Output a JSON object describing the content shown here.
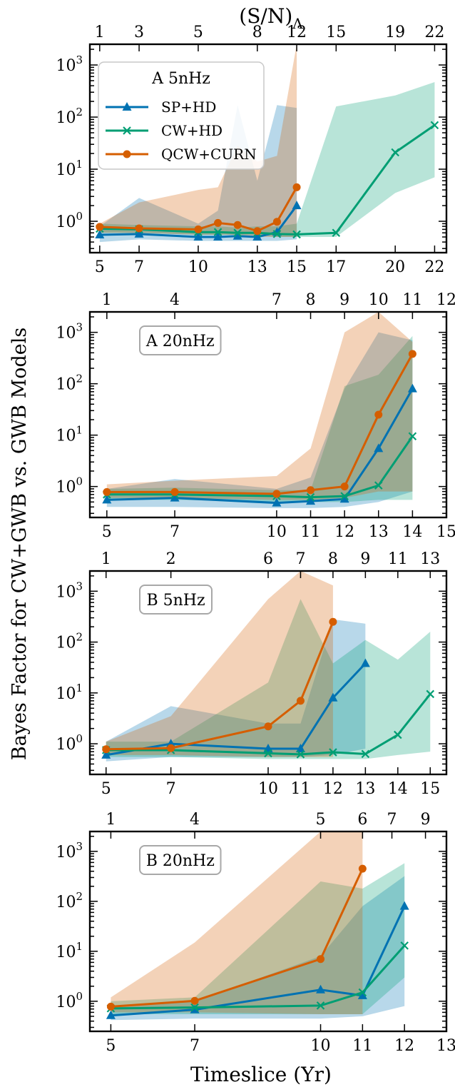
{
  "figure": {
    "ylabel": "Bayes Factor for CW+GWB vs. GWB Models",
    "xlabel": "Timeslice (Yr)",
    "top_axis_label": "(S/N)",
    "top_axis_label_sub": "Λ"
  },
  "colors": {
    "SP+HD": "#0072b2",
    "CW+HD": "#009e73",
    "QCW+CURN": "#d55e00"
  },
  "legend": {
    "title": "A 5nHz",
    "entries": [
      "SP+HD",
      "CW+HD",
      "QCW+CURN"
    ]
  },
  "chart_data": [
    {
      "type": "line",
      "title": "A 5nHz",
      "yscale": "log",
      "xlim": [
        4.5,
        22.6
      ],
      "ylim": [
        0.25,
        2500
      ],
      "yticks": [
        1,
        10,
        100,
        1000
      ],
      "xticks": [
        5,
        7,
        10,
        13,
        15,
        17,
        20,
        22
      ],
      "top_ticks": [
        {
          "x": 5,
          "label": "1"
        },
        {
          "x": 7,
          "label": "3"
        },
        {
          "x": 10,
          "label": "5"
        },
        {
          "x": 13,
          "label": "8"
        },
        {
          "x": 15,
          "label": "12"
        },
        {
          "x": 17,
          "label": "15"
        },
        {
          "x": 20,
          "label": "19"
        },
        {
          "x": 22,
          "label": "22"
        }
      ],
      "series": [
        {
          "name": "SP+HD",
          "marker": "triangle",
          "x": [
            5,
            7,
            10,
            11,
            12,
            13,
            14,
            15
          ],
          "y": [
            0.55,
            0.57,
            0.5,
            0.5,
            0.52,
            0.5,
            0.62,
            2.0
          ],
          "band_x": [
            5,
            7,
            10,
            11,
            12,
            13,
            14,
            15
          ],
          "band_lo": [
            0.4,
            0.45,
            0.42,
            0.42,
            0.42,
            0.42,
            0.42,
            0.45
          ],
          "band_hi": [
            0.8,
            2.8,
            0.9,
            1.6,
            170,
            6,
            170,
            150
          ]
        },
        {
          "name": "CW+HD",
          "marker": "x",
          "x": [
            5,
            7,
            10,
            11,
            12,
            13,
            14,
            15,
            17,
            20,
            22
          ],
          "y": [
            0.72,
            0.7,
            0.62,
            0.62,
            0.6,
            0.6,
            0.57,
            0.56,
            0.6,
            21,
            70
          ],
          "band_x": [
            5,
            7,
            10,
            11,
            12,
            13,
            14,
            15,
            17,
            20,
            22
          ],
          "band_lo": [
            0.6,
            0.6,
            0.55,
            0.55,
            0.55,
            0.55,
            0.5,
            0.5,
            0.5,
            3.5,
            7
          ],
          "band_hi": [
            0.9,
            0.85,
            0.8,
            0.8,
            0.75,
            0.8,
            0.8,
            0.9,
            160,
            260,
            470
          ]
        },
        {
          "name": "QCW+CURN",
          "marker": "circle",
          "x": [
            5,
            7,
            10,
            11,
            12,
            13,
            14,
            15
          ],
          "y": [
            0.78,
            0.73,
            0.7,
            0.93,
            0.85,
            0.65,
            0.98,
            4.5
          ],
          "band_x": [
            5,
            7,
            10,
            11,
            12,
            13,
            14,
            15
          ],
          "band_lo": [
            0.6,
            0.6,
            0.55,
            0.55,
            0.55,
            0.5,
            0.5,
            0.5
          ],
          "band_hi": [
            0.9,
            2.3,
            4,
            4.5,
            28,
            14,
            18,
            2500
          ]
        }
      ]
    },
    {
      "type": "line",
      "title": "A 20nHz",
      "yscale": "log",
      "xlim": [
        4.5,
        15
      ],
      "ylim": [
        0.25,
        2500
      ],
      "yticks": [
        1,
        10,
        100,
        1000
      ],
      "xticks": [
        5,
        7,
        10,
        11,
        12,
        13,
        14,
        15
      ],
      "top_ticks": [
        {
          "x": 5,
          "label": "1"
        },
        {
          "x": 7,
          "label": "4"
        },
        {
          "x": 10,
          "label": "7"
        },
        {
          "x": 11,
          "label": "8"
        },
        {
          "x": 12,
          "label": "9"
        },
        {
          "x": 13,
          "label": "10"
        },
        {
          "x": 14,
          "label": "11"
        },
        {
          "x": 15,
          "label": "12"
        }
      ],
      "series": [
        {
          "name": "SP+HD",
          "marker": "triangle",
          "x": [
            5,
            7,
            10,
            11,
            12,
            13,
            14
          ],
          "y": [
            0.55,
            0.6,
            0.48,
            0.52,
            0.57,
            5.5,
            80
          ],
          "band_x": [
            5,
            7,
            10,
            11,
            12,
            13,
            14
          ],
          "band_lo": [
            0.4,
            0.4,
            0.38,
            0.38,
            0.4,
            0.5,
            0.8
          ],
          "band_hi": [
            0.9,
            1.4,
            0.9,
            1.5,
            80,
            1000,
            700
          ]
        },
        {
          "name": "CW+HD",
          "marker": "x",
          "x": [
            5,
            7,
            10,
            11,
            12,
            13,
            14
          ],
          "y": [
            0.7,
            0.7,
            0.65,
            0.62,
            0.65,
            1.05,
            9.5
          ],
          "band_x": [
            5,
            7,
            10,
            11,
            12,
            13,
            14
          ],
          "band_lo": [
            0.55,
            0.55,
            0.5,
            0.5,
            0.5,
            0.55,
            0.55
          ],
          "band_hi": [
            0.9,
            0.95,
            0.85,
            0.85,
            90,
            150,
            850
          ]
        },
        {
          "name": "QCW+CURN",
          "marker": "circle",
          "x": [
            5,
            7,
            10,
            11,
            12,
            13,
            14
          ],
          "y": [
            0.78,
            0.78,
            0.72,
            0.85,
            1.0,
            25,
            380
          ],
          "band_x": [
            5,
            7,
            10,
            11,
            12,
            13,
            14
          ],
          "band_lo": [
            0.6,
            0.6,
            0.55,
            0.55,
            0.6,
            0.8,
            0.8
          ],
          "band_hi": [
            1.1,
            1.3,
            1.6,
            5.5,
            1000,
            2500,
            650
          ]
        }
      ]
    },
    {
      "type": "line",
      "title": "B 5nHz",
      "yscale": "log",
      "xlim": [
        4.5,
        15.5
      ],
      "ylim": [
        0.25,
        2500
      ],
      "yticks": [
        1,
        10,
        100,
        1000
      ],
      "xticks": [
        5,
        7,
        10,
        11,
        12,
        13,
        14,
        15
      ],
      "top_ticks": [
        {
          "x": 5,
          "label": "1"
        },
        {
          "x": 7,
          "label": "2"
        },
        {
          "x": 10,
          "label": "6"
        },
        {
          "x": 11,
          "label": "7"
        },
        {
          "x": 12,
          "label": "8"
        },
        {
          "x": 13,
          "label": "9"
        },
        {
          "x": 14,
          "label": "11"
        },
        {
          "x": 15,
          "label": "13"
        }
      ],
      "series": [
        {
          "name": "SP+HD",
          "marker": "triangle",
          "x": [
            5,
            7,
            10,
            11,
            12,
            13
          ],
          "y": [
            0.6,
            1.0,
            0.8,
            0.8,
            8,
            38
          ],
          "band_x": [
            5,
            7,
            10,
            11,
            12,
            13
          ],
          "band_lo": [
            0.45,
            0.55,
            0.55,
            0.55,
            0.6,
            0.8
          ],
          "band_hi": [
            1.1,
            5.5,
            2.5,
            2.5,
            280,
            230
          ]
        },
        {
          "name": "CW+HD",
          "marker": "x",
          "x": [
            5,
            7,
            10,
            11,
            12,
            13,
            14,
            15
          ],
          "y": [
            0.75,
            0.75,
            0.65,
            0.62,
            0.68,
            0.63,
            1.5,
            9.5
          ],
          "band_x": [
            5,
            7,
            10,
            11,
            12,
            13,
            14,
            15
          ],
          "band_lo": [
            0.55,
            0.55,
            0.5,
            0.5,
            0.5,
            0.5,
            0.6,
            0.7
          ],
          "band_hi": [
            1.1,
            1.1,
            16,
            700,
            38,
            110,
            45,
            160
          ]
        },
        {
          "name": "QCW+CURN",
          "marker": "circle",
          "x": [
            5,
            7,
            10,
            11,
            12
          ],
          "y": [
            0.78,
            0.82,
            2.2,
            7,
            250
          ],
          "band_x": [
            5,
            7,
            10,
            11,
            12
          ],
          "band_lo": [
            0.6,
            0.6,
            0.55,
            0.55,
            0.55
          ],
          "band_hi": [
            1.1,
            3.5,
            700,
            2500,
            1300
          ]
        }
      ]
    },
    {
      "type": "line",
      "title": "B 20nHz",
      "yscale": "log",
      "xlim": [
        4.5,
        13
      ],
      "ylim": [
        0.25,
        2500
      ],
      "yticks": [
        1,
        10,
        100,
        1000
      ],
      "xticks": [
        5,
        7,
        10,
        11,
        12,
        13
      ],
      "top_ticks": [
        {
          "x": 5,
          "label": "1"
        },
        {
          "x": 7,
          "label": "4"
        },
        {
          "x": 10,
          "label": "5"
        },
        {
          "x": 11,
          "label": "6"
        },
        {
          "x": 11.7,
          "label": "7"
        },
        {
          "x": 12.5,
          "label": "9"
        }
      ],
      "series": [
        {
          "name": "SP+HD",
          "marker": "triangle",
          "x": [
            5,
            7,
            10,
            11,
            12
          ],
          "y": [
            0.52,
            0.68,
            1.7,
            1.3,
            80
          ],
          "band_x": [
            5,
            7,
            10,
            11,
            12
          ],
          "band_lo": [
            0.42,
            0.45,
            0.45,
            0.5,
            0.8
          ],
          "band_hi": [
            0.75,
            1.0,
            8,
            80,
            320
          ]
        },
        {
          "name": "CW+HD",
          "marker": "x",
          "x": [
            5,
            7,
            10,
            11,
            12
          ],
          "y": [
            0.72,
            0.75,
            0.82,
            1.5,
            13
          ],
          "band_x": [
            5,
            7,
            10,
            11,
            12
          ],
          "band_lo": [
            0.55,
            0.55,
            0.55,
            0.55,
            3
          ],
          "band_hi": [
            1.0,
            1.2,
            250,
            180,
            580
          ]
        },
        {
          "name": "QCW+CURN",
          "marker": "circle",
          "x": [
            5,
            7,
            10,
            11
          ],
          "y": [
            0.78,
            1.02,
            7,
            450
          ],
          "band_x": [
            5,
            7,
            10,
            11
          ],
          "band_lo": [
            0.6,
            0.6,
            0.55,
            0.55
          ],
          "band_hi": [
            1.2,
            15,
            2500,
            2500
          ]
        }
      ]
    }
  ]
}
